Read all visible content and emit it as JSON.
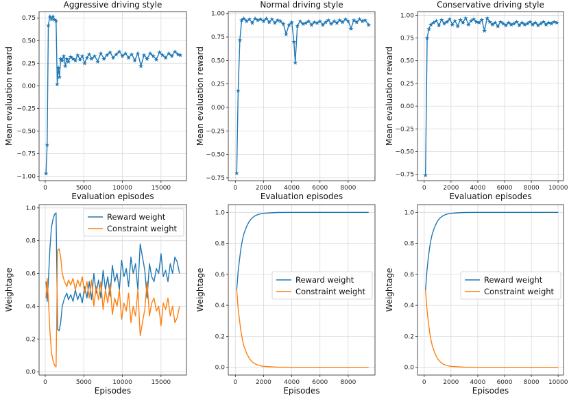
{
  "figure": {
    "series_colors": {
      "reward": "#1f77b4",
      "constraint": "#ff7f0e"
    }
  },
  "chart_data": [
    {
      "type": "line",
      "title": "Aggressive driving style",
      "xlabel": "Evaluation episodes",
      "ylabel": "Mean evaluation reward",
      "xlim": [
        -800,
        18300
      ],
      "ylim": [
        -1.05,
        0.82
      ],
      "xticks": [
        0,
        5000,
        10000,
        15000
      ],
      "xtick_labels": [
        "0",
        "5000",
        "10000",
        "15000"
      ],
      "yticks": [
        -1.0,
        -0.75,
        -0.5,
        -0.25,
        0.0,
        0.25,
        0.5,
        0.75
      ],
      "ytick_labels": [
        "−1.00",
        "−0.75",
        "−0.50",
        "−0.25",
        "0.00",
        "0.25",
        "0.50",
        "0.75"
      ],
      "marker": "star",
      "series": [
        {
          "name": "Mean evaluation reward",
          "color": "#1f77b4",
          "x": [
            100,
            250,
            400,
            600,
            800,
            1000,
            1200,
            1400,
            1550,
            1700,
            1850,
            2000,
            2200,
            2400,
            2600,
            2800,
            3000,
            3300,
            3600,
            3900,
            4200,
            4500,
            4800,
            5100,
            5400,
            5700,
            6000,
            6400,
            6800,
            7200,
            7600,
            8000,
            8400,
            8800,
            9200,
            9600,
            10000,
            10400,
            10800,
            11200,
            11600,
            12000,
            12400,
            12800,
            13200,
            13600,
            14000,
            14400,
            14800,
            15200,
            15600,
            16000,
            16400,
            16800,
            17200,
            17500
          ],
          "y": [
            -0.97,
            -0.65,
            0.67,
            0.77,
            0.74,
            0.77,
            0.73,
            0.72,
            0.02,
            0.2,
            0.1,
            0.3,
            0.28,
            0.33,
            0.22,
            0.3,
            0.27,
            0.32,
            0.3,
            0.28,
            0.34,
            0.29,
            0.33,
            0.25,
            0.31,
            0.35,
            0.3,
            0.33,
            0.27,
            0.36,
            0.3,
            0.34,
            0.37,
            0.31,
            0.35,
            0.38,
            0.33,
            0.36,
            0.31,
            0.35,
            0.28,
            0.36,
            0.22,
            0.34,
            0.3,
            0.36,
            0.33,
            0.29,
            0.37,
            0.34,
            0.31,
            0.36,
            0.33,
            0.38,
            0.35,
            0.34
          ]
        }
      ]
    },
    {
      "type": "line",
      "title": "Normal driving style",
      "xlabel": "Evaluation episodes",
      "ylabel": "Mean evaluation reward",
      "xlim": [
        -500,
        9900
      ],
      "ylim": [
        -0.78,
        1.02
      ],
      "xticks": [
        0,
        2000,
        4000,
        6000,
        8000
      ],
      "xtick_labels": [
        "0",
        "2000",
        "4000",
        "6000",
        "8000"
      ],
      "yticks": [
        -0.75,
        -0.5,
        -0.25,
        0.0,
        0.25,
        0.5,
        0.75,
        1.0
      ],
      "ytick_labels": [
        "−0.75",
        "−0.50",
        "−0.25",
        "0.00",
        "0.25",
        "0.50",
        "0.75",
        "1.00"
      ],
      "marker": "star",
      "series": [
        {
          "name": "Mean evaluation reward",
          "color": "#1f77b4",
          "x": [
            100,
            200,
            320,
            450,
            600,
            800,
            1000,
            1200,
            1400,
            1600,
            1800,
            2000,
            2200,
            2400,
            2600,
            2800,
            3000,
            3200,
            3400,
            3600,
            3800,
            4000,
            4150,
            4250,
            4400,
            4600,
            4800,
            5000,
            5200,
            5400,
            5600,
            5800,
            6000,
            6200,
            6400,
            6600,
            6800,
            7000,
            7200,
            7400,
            7600,
            7800,
            8000,
            8200,
            8400,
            8600,
            8800,
            9000,
            9200,
            9450
          ],
          "y": [
            -0.7,
            0.18,
            0.72,
            0.93,
            0.95,
            0.92,
            0.94,
            0.9,
            0.95,
            0.93,
            0.94,
            0.92,
            0.95,
            0.91,
            0.94,
            0.9,
            0.93,
            0.92,
            0.89,
            0.78,
            0.88,
            0.91,
            0.7,
            0.48,
            0.87,
            0.92,
            0.89,
            0.9,
            0.92,
            0.88,
            0.91,
            0.9,
            0.92,
            0.88,
            0.91,
            0.93,
            0.89,
            0.92,
            0.9,
            0.93,
            0.91,
            0.94,
            0.92,
            0.84,
            0.93,
            0.91,
            0.94,
            0.92,
            0.93,
            0.88
          ]
        }
      ]
    },
    {
      "type": "line",
      "title": "Conservative driving style",
      "xlabel": "Evaluation episodes",
      "ylabel": "Mean evaluation reward",
      "xlim": [
        -500,
        10400
      ],
      "ylim": [
        -0.82,
        1.04
      ],
      "xticks": [
        0,
        2000,
        4000,
        6000,
        8000,
        10000
      ],
      "xtick_labels": [
        "0",
        "2000",
        "4000",
        "6000",
        "8000",
        "10000"
      ],
      "yticks": [
        -0.75,
        -0.5,
        -0.25,
        0.0,
        0.25,
        0.5,
        0.75,
        1.0
      ],
      "ytick_labels": [
        "−0.75",
        "−0.50",
        "−0.25",
        "0.00",
        "0.25",
        "0.50",
        "0.75",
        "1.00"
      ],
      "marker": "star",
      "series": [
        {
          "name": "Mean evaluation reward",
          "color": "#1f77b4",
          "x": [
            100,
            220,
            350,
            500,
            700,
            900,
            1100,
            1300,
            1500,
            1700,
            1900,
            2100,
            2300,
            2500,
            2700,
            2900,
            3100,
            3300,
            3500,
            3700,
            3900,
            4100,
            4300,
            4500,
            4700,
            4900,
            5100,
            5300,
            5500,
            5700,
            5900,
            6100,
            6300,
            6500,
            6700,
            6900,
            7100,
            7300,
            7500,
            7700,
            7900,
            8100,
            8300,
            8500,
            8700,
            8900,
            9100,
            9300,
            9500,
            9700,
            9900
          ],
          "y": [
            -0.76,
            0.75,
            0.85,
            0.9,
            0.92,
            0.94,
            0.89,
            0.95,
            0.91,
            0.93,
            0.96,
            0.9,
            0.94,
            0.88,
            0.95,
            0.92,
            0.97,
            0.9,
            0.94,
            0.96,
            0.93,
            0.92,
            0.95,
            0.83,
            0.97,
            0.93,
            0.9,
            0.92,
            0.88,
            0.93,
            0.91,
            0.89,
            0.92,
            0.9,
            0.91,
            0.93,
            0.89,
            0.92,
            0.9,
            0.91,
            0.93,
            0.9,
            0.92,
            0.89,
            0.91,
            0.93,
            0.9,
            0.92,
            0.91,
            0.93,
            0.92
          ]
        }
      ]
    },
    {
      "type": "line",
      "title": "",
      "xlabel": "Episodes",
      "ylabel": "Weightage",
      "xlim": [
        -800,
        18300
      ],
      "ylim": [
        -0.02,
        1.02
      ],
      "xticks": [
        0,
        5000,
        10000,
        15000
      ],
      "xtick_labels": [
        "0",
        "5000",
        "10000",
        "15000"
      ],
      "yticks": [
        0.0,
        0.2,
        0.4,
        0.6,
        0.8,
        1.0
      ],
      "ytick_labels": [
        "0.0",
        "0.2",
        "0.4",
        "0.6",
        "0.8",
        "1.0"
      ],
      "legend": "top-right",
      "series": [
        {
          "name": "Reward weight",
          "color": "#1f77b4",
          "x": [
            100,
            250,
            400,
            600,
            800,
            1000,
            1200,
            1400,
            1500,
            1600,
            1800,
            2000,
            2200,
            2500,
            2800,
            3000,
            3300,
            3600,
            3900,
            4200,
            4500,
            4800,
            5100,
            5400,
            5700,
            6000,
            6300,
            6600,
            6900,
            7200,
            7500,
            7800,
            8100,
            8400,
            8700,
            9000,
            9300,
            9600,
            9900,
            10200,
            10500,
            10800,
            11100,
            11400,
            11700,
            12000,
            12300,
            12600,
            12900,
            13200,
            13500,
            13800,
            14100,
            14400,
            14700,
            15000,
            15300,
            15600,
            15900,
            16200,
            16500,
            16800,
            17100,
            17400
          ],
          "y": [
            0.55,
            0.43,
            0.55,
            0.75,
            0.88,
            0.93,
            0.96,
            0.97,
            0.62,
            0.26,
            0.25,
            0.3,
            0.4,
            0.45,
            0.48,
            0.44,
            0.47,
            0.43,
            0.5,
            0.44,
            0.48,
            0.42,
            0.52,
            0.45,
            0.55,
            0.44,
            0.6,
            0.48,
            0.56,
            0.45,
            0.62,
            0.5,
            0.58,
            0.46,
            0.65,
            0.55,
            0.6,
            0.5,
            0.68,
            0.58,
            0.63,
            0.52,
            0.7,
            0.6,
            0.66,
            0.5,
            0.78,
            0.7,
            0.62,
            0.45,
            0.66,
            0.58,
            0.55,
            0.63,
            0.6,
            0.72,
            0.58,
            0.62,
            0.55,
            0.66,
            0.6,
            0.7,
            0.67,
            0.6
          ]
        },
        {
          "name": "Constraint weight",
          "color": "#ff7f0e",
          "x": [
            100,
            250,
            400,
            600,
            800,
            1000,
            1200,
            1400,
            1500,
            1600,
            1800,
            2000,
            2200,
            2500,
            2800,
            3000,
            3300,
            3600,
            3900,
            4200,
            4500,
            4800,
            5100,
            5400,
            5700,
            6000,
            6300,
            6600,
            6900,
            7200,
            7500,
            7800,
            8100,
            8400,
            8700,
            9000,
            9300,
            9600,
            9900,
            10200,
            10500,
            10800,
            11100,
            11400,
            11700,
            12000,
            12300,
            12600,
            12900,
            13200,
            13500,
            13800,
            14100,
            14400,
            14700,
            15000,
            15300,
            15600,
            15900,
            16200,
            16500,
            16800,
            17100,
            17400
          ],
          "y": [
            0.45,
            0.57,
            0.45,
            0.25,
            0.12,
            0.07,
            0.04,
            0.03,
            0.38,
            0.74,
            0.75,
            0.7,
            0.6,
            0.55,
            0.52,
            0.56,
            0.53,
            0.57,
            0.5,
            0.56,
            0.52,
            0.58,
            0.48,
            0.55,
            0.45,
            0.56,
            0.4,
            0.52,
            0.44,
            0.55,
            0.38,
            0.5,
            0.42,
            0.54,
            0.35,
            0.45,
            0.4,
            0.5,
            0.32,
            0.42,
            0.37,
            0.48,
            0.3,
            0.4,
            0.34,
            0.5,
            0.22,
            0.3,
            0.38,
            0.55,
            0.34,
            0.42,
            0.45,
            0.37,
            0.4,
            0.28,
            0.42,
            0.38,
            0.45,
            0.34,
            0.4,
            0.3,
            0.33,
            0.4
          ]
        }
      ]
    },
    {
      "type": "line",
      "title": "",
      "xlabel": "Episodes",
      "ylabel": "Weightage",
      "xlim": [
        -500,
        9900
      ],
      "ylim": [
        -0.05,
        1.05
      ],
      "xticks": [
        0,
        2000,
        4000,
        6000,
        8000
      ],
      "xtick_labels": [
        "0",
        "2000",
        "4000",
        "6000",
        "8000"
      ],
      "yticks": [
        0.0,
        0.2,
        0.4,
        0.6,
        0.8,
        1.0
      ],
      "ytick_labels": [
        "0.0",
        "0.2",
        "0.4",
        "0.6",
        "0.8",
        "1.0"
      ],
      "legend": "center-right",
      "series": [
        {
          "name": "Reward weight",
          "color": "#1f77b4",
          "x": [
            100,
            200,
            300,
            400,
            500,
            600,
            800,
            1000,
            1200,
            1400,
            1600,
            1800,
            2000,
            2500,
            3000,
            4000,
            5000,
            6000,
            7000,
            8000,
            9000,
            9450
          ],
          "y": [
            0.5,
            0.62,
            0.7,
            0.77,
            0.82,
            0.86,
            0.91,
            0.945,
            0.965,
            0.978,
            0.986,
            0.991,
            0.994,
            0.997,
            0.999,
            1.0,
            1.0,
            1.0,
            1.0,
            1.0,
            1.0,
            1.0
          ]
        },
        {
          "name": "Constraint weight",
          "color": "#ff7f0e",
          "x": [
            100,
            200,
            300,
            400,
            500,
            600,
            800,
            1000,
            1200,
            1400,
            1600,
            1800,
            2000,
            2500,
            3000,
            4000,
            5000,
            6000,
            7000,
            8000,
            9000,
            9450
          ],
          "y": [
            0.5,
            0.38,
            0.3,
            0.23,
            0.18,
            0.14,
            0.09,
            0.055,
            0.035,
            0.022,
            0.014,
            0.009,
            0.006,
            0.003,
            0.001,
            0.0,
            0.0,
            0.0,
            0.0,
            0.0,
            0.0,
            0.0
          ]
        }
      ]
    },
    {
      "type": "line",
      "title": "",
      "xlabel": "Episodes",
      "ylabel": "Weightage",
      "xlim": [
        -500,
        10400
      ],
      "ylim": [
        -0.05,
        1.05
      ],
      "xticks": [
        0,
        2000,
        4000,
        6000,
        8000,
        10000
      ],
      "xtick_labels": [
        "0",
        "2000",
        "4000",
        "6000",
        "8000",
        "10000"
      ],
      "yticks": [
        0.0,
        0.2,
        0.4,
        0.6,
        0.8,
        1.0
      ],
      "ytick_labels": [
        "0.0",
        "0.2",
        "0.4",
        "0.6",
        "0.8",
        "1.0"
      ],
      "legend": "center-right",
      "series": [
        {
          "name": "Reward weight",
          "color": "#1f77b4",
          "x": [
            100,
            200,
            300,
            400,
            500,
            600,
            800,
            1000,
            1200,
            1400,
            1600,
            1800,
            2000,
            2500,
            3000,
            4000,
            5000,
            6000,
            7000,
            8000,
            9000,
            10000
          ],
          "y": [
            0.5,
            0.62,
            0.7,
            0.77,
            0.82,
            0.86,
            0.91,
            0.945,
            0.965,
            0.978,
            0.986,
            0.991,
            0.994,
            0.997,
            0.999,
            1.0,
            1.0,
            1.0,
            1.0,
            1.0,
            1.0,
            1.0
          ]
        },
        {
          "name": "Constraint weight",
          "color": "#ff7f0e",
          "x": [
            100,
            200,
            300,
            400,
            500,
            600,
            800,
            1000,
            1200,
            1400,
            1600,
            1800,
            2000,
            2500,
            3000,
            4000,
            5000,
            6000,
            7000,
            8000,
            9000,
            10000
          ],
          "y": [
            0.5,
            0.38,
            0.3,
            0.23,
            0.18,
            0.14,
            0.09,
            0.055,
            0.035,
            0.022,
            0.014,
            0.009,
            0.006,
            0.003,
            0.001,
            0.0,
            0.0,
            0.0,
            0.0,
            0.0,
            0.0,
            0.0
          ]
        }
      ]
    }
  ]
}
